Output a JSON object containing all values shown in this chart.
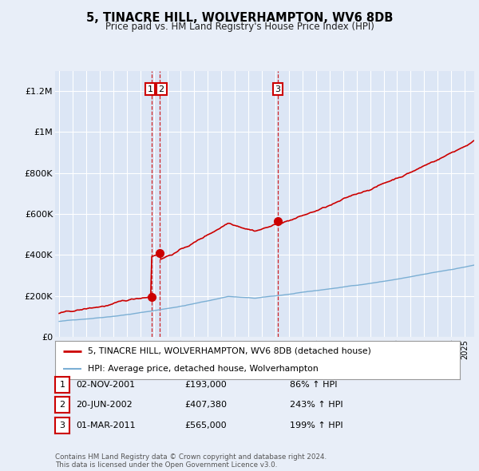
{
  "title": "5, TINACRE HILL, WOLVERHAMPTON, WV6 8DB",
  "subtitle": "Price paid vs. HM Land Registry's House Price Index (HPI)",
  "bg_color": "#e8eef8",
  "plot_bg_color": "#dce6f5",
  "grid_color": "#ffffff",
  "sale_color": "#cc0000",
  "hpi_color": "#7bafd4",
  "ylim": [
    0,
    1300000
  ],
  "yticks": [
    0,
    200000,
    400000,
    600000,
    800000,
    1000000,
    1200000
  ],
  "ytick_labels": [
    "£0",
    "£200K",
    "£400K",
    "£600K",
    "£800K",
    "£1M",
    "£1.2M"
  ],
  "sale_dates_num": [
    2001.836,
    2002.463,
    2011.167
  ],
  "sale_prices": [
    193000,
    407380,
    565000
  ],
  "transactions": [
    {
      "num": "1",
      "date": "02-NOV-2001",
      "price": "£193,000",
      "hpi": "86% ↑ HPI"
    },
    {
      "num": "2",
      "date": "20-JUN-2002",
      "price": "£407,380",
      "hpi": "243% ↑ HPI"
    },
    {
      "num": "3",
      "date": "01-MAR-2011",
      "price": "£565,000",
      "hpi": "199% ↑ HPI"
    }
  ],
  "footer": "Contains HM Land Registry data © Crown copyright and database right 2024.\nThis data is licensed under the Open Government Licence v3.0.",
  "legend_sale": "5, TINACRE HILL, WOLVERHAMPTON, WV6 8DB (detached house)",
  "legend_hpi": "HPI: Average price, detached house, Wolverhampton"
}
